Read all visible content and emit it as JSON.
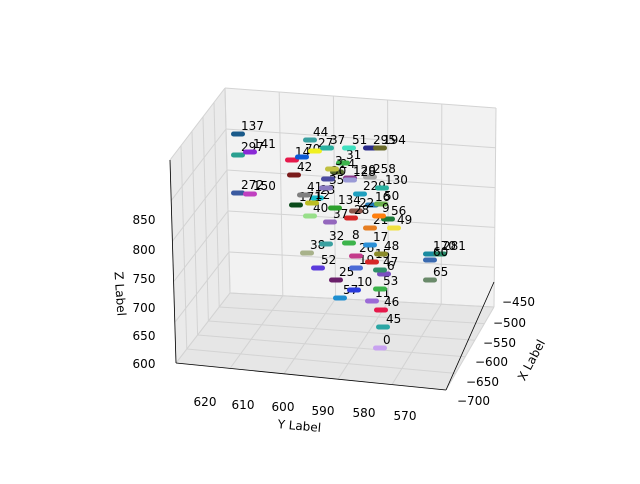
{
  "chart_data": {
    "type": "scatter3d",
    "title": "",
    "xlabel": "X Label",
    "ylabel": "Y Label",
    "zlabel": "Z Label",
    "x_ticks": [
      "−450",
      "−500",
      "−550",
      "−600",
      "−650",
      "−700"
    ],
    "y_ticks": [
      "620",
      "610",
      "600",
      "590",
      "580",
      "570"
    ],
    "z_ticks": [
      "600",
      "650",
      "700",
      "750",
      "800",
      "850"
    ],
    "grid": true,
    "points": [
      {
        "label": "0",
        "color": "#c8a2f0"
      },
      {
        "label": "45",
        "color": "#2ca6a4"
      },
      {
        "label": "46",
        "color": "#e6194b"
      },
      {
        "label": "57",
        "color": "#1f8fd0"
      },
      {
        "label": "11",
        "color": "#9b6ad6"
      },
      {
        "label": "10",
        "color": "#2a3bdc"
      },
      {
        "label": "53",
        "color": "#3cb44b"
      },
      {
        "label": "6",
        "color": "#7a4fc0"
      },
      {
        "label": "47",
        "color": "#2f8f6a"
      },
      {
        "label": "25",
        "color": "#6a1f6a"
      },
      {
        "label": "19",
        "color": "#4b6bd6"
      },
      {
        "label": "52",
        "color": "#5b3bdc"
      },
      {
        "label": "26",
        "color": "#c43b8a"
      },
      {
        "label": "15",
        "color": "#d62728"
      },
      {
        "label": "38",
        "color": "#a8b28a"
      },
      {
        "label": "32",
        "color": "#3aa0a0"
      },
      {
        "label": "8",
        "color": "#3cb44b"
      },
      {
        "label": "17",
        "color": "#2a8fd6"
      },
      {
        "label": "48",
        "color": "#8a8a2a"
      },
      {
        "label": "21",
        "color": "#e67e22"
      },
      {
        "label": "49",
        "color": "#f0e040"
      },
      {
        "label": "56",
        "color": "#1a7a3a"
      },
      {
        "label": "16",
        "color": "#1f77b4"
      },
      {
        "label": "50",
        "color": "#6ab04c"
      },
      {
        "label": "9",
        "color": "#ff7f0e"
      },
      {
        "label": "22",
        "color": "#8c564b"
      },
      {
        "label": "28",
        "color": "#d62728"
      },
      {
        "label": "37",
        "color": "#9467bd"
      },
      {
        "label": "40",
        "color": "#98df8a"
      },
      {
        "label": "134",
        "color": "#2ca02c"
      },
      {
        "label": "23",
        "color": "#17becf"
      },
      {
        "label": "171",
        "color": "#0a4a1a"
      },
      {
        "label": "12",
        "color": "#bcbd22"
      },
      {
        "label": "41",
        "color": "#7f7f7f"
      },
      {
        "label": "35",
        "color": "#8a7ac0"
      },
      {
        "label": "229",
        "color": "#1f9fbf"
      },
      {
        "label": "130",
        "color": "#2ab0a0"
      },
      {
        "label": "120",
        "color": "#8a3a8a"
      },
      {
        "label": "258",
        "color": "#a8a8a8"
      },
      {
        "label": "24",
        "color": "#556b2f"
      },
      {
        "label": "30",
        "color": "#4a4aa0"
      },
      {
        "label": "128",
        "color": "#9a9ad6"
      },
      {
        "label": "42",
        "color": "#7a1a1a"
      },
      {
        "label": "31",
        "color": "#3cb44b"
      },
      {
        "label": "3",
        "color": "#c0c040"
      },
      {
        "label": "14",
        "color": "#e6194b"
      },
      {
        "label": "70",
        "color": "#0a5ad6"
      },
      {
        "label": "27",
        "color": "#f0f020"
      },
      {
        "label": "37",
        "color": "#2ab0a0"
      },
      {
        "label": "51",
        "color": "#40e0c0"
      },
      {
        "label": "44",
        "color": "#3aa0a0"
      },
      {
        "label": "295",
        "color": "#2a2a8a"
      },
      {
        "label": "194",
        "color": "#6a6a2a"
      },
      {
        "label": "137",
        "color": "#1a5a8a"
      },
      {
        "label": "297",
        "color": "#2aa090"
      },
      {
        "label": "141",
        "color": "#8a2ad6"
      },
      {
        "label": "272",
        "color": "#3a5aa0"
      },
      {
        "label": "150",
        "color": "#c040c0"
      },
      {
        "label": "170",
        "color": "#1a8aa0"
      },
      {
        "label": "281",
        "color": "#2a8a6a"
      },
      {
        "label": "60",
        "color": "#3a6ab0"
      },
      {
        "label": "65",
        "color": "#6a8a6a"
      }
    ]
  }
}
